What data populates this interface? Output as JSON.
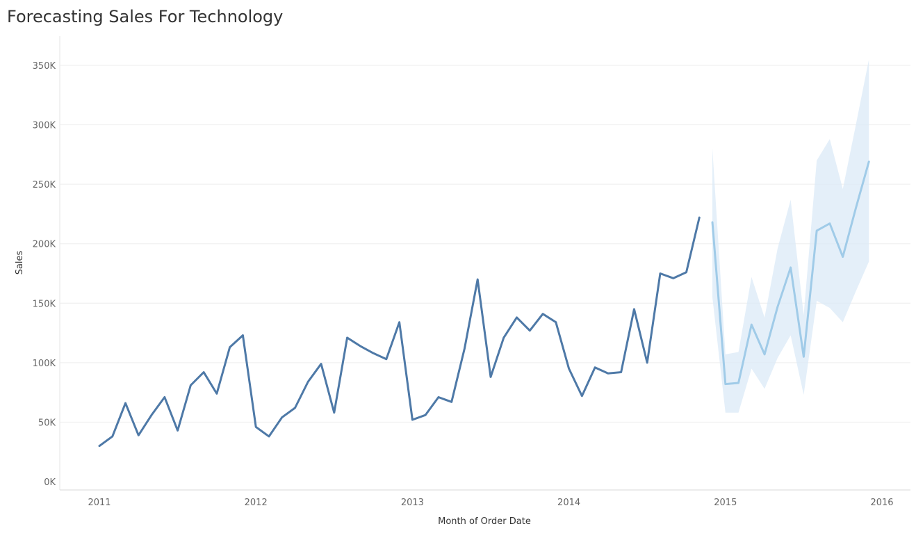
{
  "chart_data": {
    "type": "line",
    "title": "Forecasting Sales For Technology",
    "xlabel": "Month of Order Date",
    "ylabel": "Sales",
    "ylim": [
      0,
      350000
    ],
    "y_ticks": [
      {
        "value": 0,
        "label": "0K"
      },
      {
        "value": 50000,
        "label": "50K"
      },
      {
        "value": 100000,
        "label": "100K"
      },
      {
        "value": 150000,
        "label": "150K"
      },
      {
        "value": 200000,
        "label": "200K"
      },
      {
        "value": 250000,
        "label": "250K"
      },
      {
        "value": 300000,
        "label": "300K"
      },
      {
        "value": 350000,
        "label": "350K"
      }
    ],
    "x_ticks": [
      "2011",
      "2012",
      "2013",
      "2014",
      "2015",
      "2016"
    ],
    "grid": true,
    "colors": {
      "actual": "#4e79a7",
      "forecast": "#a0cbe8",
      "band": "#dbeaf7",
      "grid": "#eeeeee"
    },
    "series": [
      {
        "x": [
          "2011-01",
          "2011-02",
          "2011-03",
          "2011-04",
          "2011-05",
          "2011-06",
          "2011-07",
          "2011-08",
          "2011-09",
          "2011-10",
          "2011-11",
          "2011-12",
          "2012-01",
          "2012-02",
          "2012-03",
          "2012-04",
          "2012-05",
          "2012-06",
          "2012-07",
          "2012-08",
          "2012-09",
          "2012-10",
          "2012-11",
          "2012-12",
          "2013-01",
          "2013-02",
          "2013-03",
          "2013-04",
          "2013-05",
          "2013-06",
          "2013-07",
          "2013-08",
          "2013-09",
          "2013-10",
          "2013-11",
          "2013-12",
          "2014-01",
          "2014-02",
          "2014-03",
          "2014-04",
          "2014-05",
          "2014-06",
          "2014-07",
          "2014-08",
          "2014-09",
          "2014-10",
          "2014-11"
        ],
        "values": [
          30000,
          38000,
          66000,
          39000,
          56000,
          71000,
          43000,
          81000,
          92000,
          74000,
          113000,
          123000,
          46000,
          38000,
          54000,
          62000,
          84000,
          99000,
          58000,
          121000,
          114000,
          108000,
          103000,
          134000,
          52000,
          56000,
          71000,
          67000,
          112000,
          170000,
          88000,
          121000,
          138000,
          127000,
          141000,
          134000,
          95000,
          72000,
          96000,
          91000,
          92000,
          145000,
          100000,
          175000,
          171000,
          176000,
          222000
        ]
      },
      {
        "x": [
          "2014-12",
          "2015-01",
          "2015-02",
          "2015-03",
          "2015-04",
          "2015-05",
          "2015-06",
          "2015-07",
          "2015-08",
          "2015-09",
          "2015-10",
          "2015-11",
          "2015-12"
        ],
        "values": [
          218000,
          82000,
          83000,
          132000,
          107000,
          147000,
          180000,
          105000,
          211000,
          217000,
          189000,
          230000,
          269000
        ],
        "lower": [
          155000,
          58000,
          58000,
          95000,
          78000,
          104000,
          123000,
          73000,
          152000,
          146000,
          134000,
          160000,
          185000
        ],
        "upper": [
          280000,
          107000,
          109000,
          172000,
          138000,
          196000,
          237000,
          140000,
          270000,
          288000,
          246000,
          300000,
          355000
        ]
      }
    ]
  }
}
